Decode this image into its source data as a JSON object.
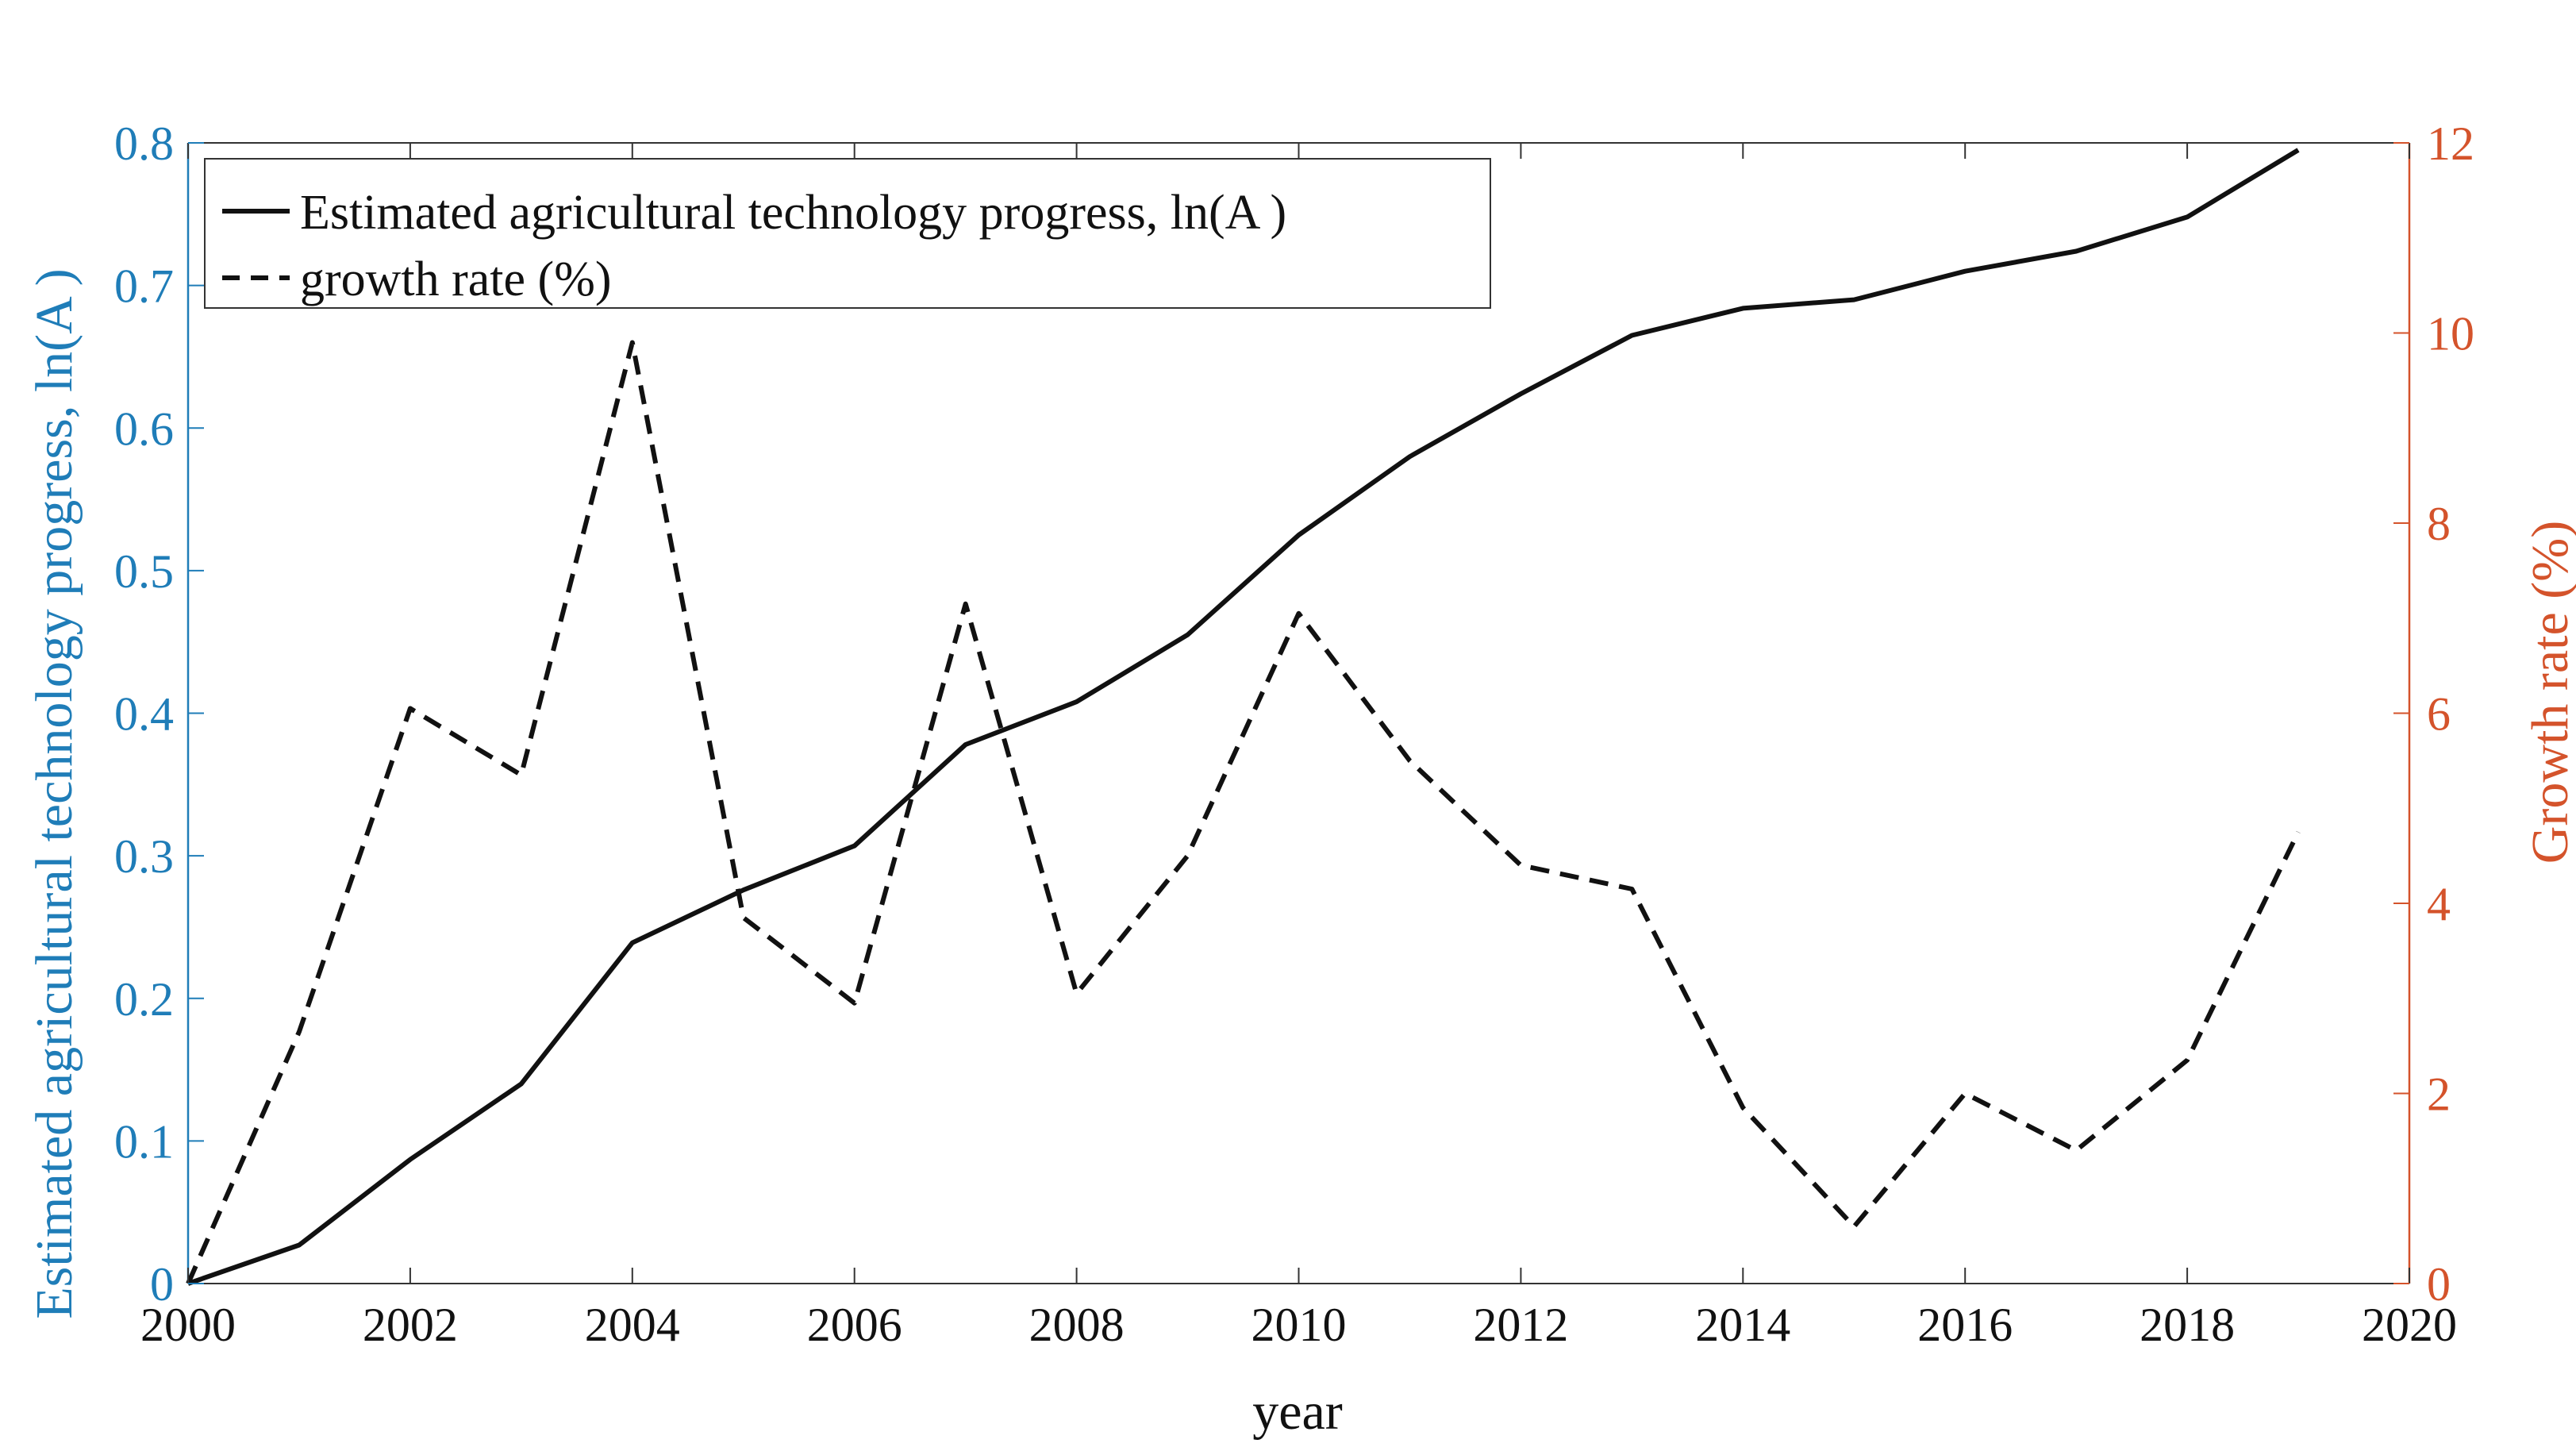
{
  "colors": {
    "left_axis": "#1f7db8",
    "right_axis": "#d4532b",
    "series": "#111111"
  },
  "chart_data": {
    "type": "line",
    "x": [
      2000,
      2001,
      2002,
      2003,
      2004,
      2005,
      2006,
      2007,
      2008,
      2009,
      2010,
      2011,
      2012,
      2013,
      2014,
      2015,
      2016,
      2017,
      2018,
      2019
    ],
    "xlabel": "year",
    "xlim": [
      2000,
      2020
    ],
    "x_ticks": [
      "2000",
      "2002",
      "2004",
      "2006",
      "2008",
      "2010",
      "2012",
      "2014",
      "2016",
      "2018",
      "2020"
    ],
    "ylabel_left": "Estimated agricultural technology progress, ln(A   )",
    "ylim_left": [
      0,
      0.8
    ],
    "y_ticks_left": [
      "0",
      "0.1",
      "0.2",
      "0.3",
      "0.4",
      "0.5",
      "0.6",
      "0.7",
      "0.8"
    ],
    "ylabel_right": "Growth rate (%)",
    "ylim_right": [
      0,
      12
    ],
    "y_ticks_right": [
      "0",
      "2",
      "4",
      "6",
      "8",
      "10",
      "12"
    ],
    "series": [
      {
        "name": "Estimated agricultural technology progress, ln(A   )",
        "axis": "left",
        "style": "solid",
        "values": [
          0,
          0.027,
          0.087,
          0.14,
          0.239,
          0.276,
          0.307,
          0.378,
          0.408,
          0.455,
          0.525,
          0.58,
          0.624,
          0.665,
          0.684,
          0.69,
          0.71,
          0.724,
          0.748,
          0.795
        ]
      },
      {
        "name": "growth rate (%)",
        "axis": "right",
        "style": "dashed",
        "values": [
          0,
          2.65,
          6.05,
          5.35,
          9.9,
          3.85,
          2.95,
          7.15,
          3.05,
          4.5,
          7.05,
          5.5,
          4.4,
          4.15,
          1.85,
          0.6,
          2.0,
          1.4,
          2.35,
          4.75
        ]
      }
    ],
    "legend": {
      "position": "top-left",
      "entries": [
        "Estimated agricultural technology progress, ln(A   )",
        "growth rate (%)"
      ]
    }
  }
}
